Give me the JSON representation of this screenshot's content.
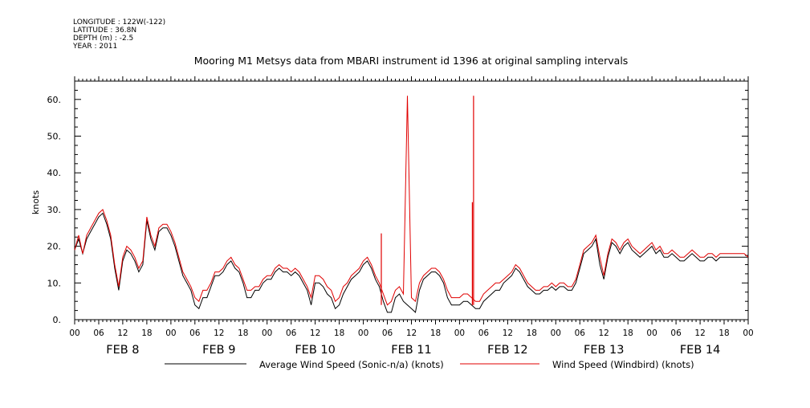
{
  "metadata": [
    "LONGITUDE : 122W(-122)",
    "LATITUDE : 36.8N",
    "DEPTH (m) : -2.5",
    "YEAR : 2011"
  ],
  "colors": {
    "sonic": "#000000",
    "windbird": "#e00000",
    "axes": "#000000"
  },
  "chart_data": {
    "type": "line",
    "title": "Mooring M1 Metsys data from MBARI instrument id 1396 at original sampling intervals",
    "ylabel": "knots",
    "xlabel": "",
    "ylim": [
      0,
      65
    ],
    "xlim_hours": [
      0,
      168
    ],
    "y_ticks": [
      "0.",
      "10.",
      "20.",
      "30.",
      "40.",
      "50.",
      "60."
    ],
    "y_tick_values": [
      0,
      10,
      20,
      30,
      40,
      50,
      60
    ],
    "hour_labels": [
      "00",
      "06",
      "12",
      "18",
      "00",
      "06",
      "12",
      "18",
      "00",
      "06",
      "12",
      "18",
      "00",
      "06",
      "12",
      "18",
      "00",
      "06",
      "12",
      "18",
      "00",
      "06",
      "12",
      "18",
      "00",
      "06",
      "12",
      "18",
      "00"
    ],
    "day_labels": [
      "FEB  8",
      "FEB  9",
      "FEB 10",
      "FEB 11",
      "FEB 12",
      "FEB 13",
      "FEB 14"
    ],
    "grid": false,
    "legend_position": "bottom",
    "x_unit": "hours since FEB 8 00:00",
    "series": [
      {
        "name": "Average Wind Speed (Sonic-n/a) (knots)",
        "x": [
          0,
          1,
          2,
          3,
          4,
          5,
          6,
          7,
          8,
          9,
          10,
          11,
          12,
          13,
          14,
          15,
          16,
          17,
          18,
          19,
          20,
          21,
          22,
          23,
          24,
          25,
          26,
          27,
          28,
          29,
          30,
          31,
          32,
          33,
          34,
          35,
          36,
          37,
          38,
          39,
          40,
          41,
          42,
          43,
          44,
          45,
          46,
          47,
          48,
          49,
          50,
          51,
          52,
          53,
          54,
          55,
          56,
          57,
          58,
          59,
          60,
          61,
          62,
          63,
          64,
          65,
          66,
          67,
          68,
          69,
          70,
          71,
          72,
          73,
          74,
          75,
          76,
          77,
          78,
          79,
          80,
          81,
          82,
          83,
          84,
          85,
          86,
          87,
          88,
          89,
          90,
          91,
          92,
          93,
          94,
          95,
          96,
          97,
          98,
          99,
          100,
          101,
          102,
          103,
          104,
          105,
          106,
          107,
          108,
          109,
          110,
          111,
          112,
          113,
          114,
          115,
          116,
          117,
          118,
          119,
          120,
          121,
          122,
          123,
          124,
          125,
          126,
          127,
          128,
          129,
          130,
          131,
          132,
          133,
          134,
          135,
          136,
          137,
          138,
          139,
          140,
          141,
          142,
          143,
          144,
          145,
          146,
          147,
          148,
          149,
          150,
          151,
          152,
          153,
          154,
          155,
          156,
          157,
          158,
          159,
          160,
          161,
          162,
          163,
          164,
          165,
          166,
          167,
          168
        ],
        "values": [
          19,
          22,
          18,
          22,
          24,
          26,
          28,
          29,
          26,
          22,
          14,
          8,
          16,
          19,
          18,
          16,
          13,
          15,
          27,
          22,
          19,
          24,
          25,
          25,
          23,
          20,
          16,
          12,
          10,
          8,
          4,
          3,
          6,
          6,
          9,
          12,
          12,
          13,
          15,
          16,
          14,
          13,
          10,
          6,
          6,
          8,
          8,
          10,
          11,
          11,
          13,
          14,
          13,
          13,
          12,
          13,
          12,
          10,
          8,
          4,
          10,
          10,
          9,
          7,
          6,
          3,
          4,
          7,
          9,
          11,
          12,
          13,
          15,
          16,
          14,
          11,
          9,
          5,
          2,
          2,
          6,
          7,
          5,
          4,
          3,
          2,
          8,
          11,
          12,
          13,
          13,
          12,
          10,
          6,
          4,
          4,
          4,
          5,
          5,
          4,
          3,
          3,
          5,
          6,
          7,
          8,
          8,
          10,
          11,
          12,
          14,
          13,
          11,
          9,
          8,
          7,
          7,
          8,
          8,
          9,
          8,
          9,
          9,
          8,
          8,
          10,
          14,
          18,
          19,
          20,
          22,
          15,
          11,
          17,
          21,
          20,
          18,
          20,
          21,
          19,
          18,
          17,
          18,
          19,
          20,
          18,
          19,
          17,
          17,
          18,
          17,
          16,
          16,
          17,
          18,
          17,
          16,
          16,
          17,
          17,
          16,
          17,
          17,
          17,
          17,
          17,
          17,
          17,
          17
        ]
      },
      {
        "name": "Wind Speed (Windbird) (knots)",
        "x": [
          0,
          1,
          2,
          3,
          4,
          5,
          6,
          7,
          8,
          9,
          10,
          11,
          12,
          13,
          14,
          15,
          16,
          17,
          18,
          19,
          20,
          21,
          22,
          23,
          24,
          25,
          26,
          27,
          28,
          29,
          30,
          31,
          32,
          33,
          34,
          35,
          36,
          37,
          38,
          39,
          40,
          41,
          42,
          43,
          44,
          45,
          46,
          47,
          48,
          49,
          50,
          51,
          52,
          53,
          54,
          55,
          56,
          57,
          58,
          59,
          60,
          61,
          62,
          63,
          64,
          65,
          66,
          67,
          68,
          69,
          70,
          71,
          72,
          73,
          74,
          75,
          76,
          77,
          78,
          79,
          80,
          81,
          82,
          83,
          84,
          85,
          86,
          87,
          88,
          89,
          90,
          91,
          92,
          93,
          94,
          95,
          96,
          97,
          98,
          99,
          100,
          101,
          102,
          103,
          104,
          105,
          106,
          107,
          108,
          109,
          110,
          111,
          112,
          113,
          114,
          115,
          116,
          117,
          118,
          119,
          120,
          121,
          122,
          123,
          124,
          125,
          126,
          127,
          128,
          129,
          130,
          131,
          132,
          133,
          134,
          135,
          136,
          137,
          138,
          139,
          140,
          141,
          142,
          143,
          144,
          145,
          146,
          147,
          148,
          149,
          150,
          151,
          152,
          153,
          154,
          155,
          156,
          157,
          158,
          159,
          160,
          161,
          162,
          163,
          164,
          165,
          166,
          167,
          168
        ],
        "values": [
          19,
          23,
          18,
          23,
          25,
          27,
          29,
          30,
          27,
          23,
          15,
          9,
          17,
          20,
          19,
          17,
          14,
          16,
          28,
          23,
          20,
          25,
          26,
          26,
          24,
          21,
          17,
          13,
          11,
          9,
          6,
          5,
          8,
          8,
          10,
          13,
          13,
          14,
          16,
          17,
          15,
          14,
          11,
          8,
          8,
          9,
          9,
          11,
          12,
          12,
          14,
          15,
          14,
          14,
          13,
          14,
          13,
          11,
          9,
          6,
          12,
          12,
          11,
          9,
          8,
          5,
          6,
          9,
          10,
          12,
          13,
          14,
          16,
          17,
          15,
          12,
          10,
          7,
          4,
          5,
          8,
          9,
          7,
          61,
          6,
          5,
          10,
          12,
          13,
          14,
          14,
          13,
          11,
          8,
          6,
          6,
          6,
          7,
          7,
          6,
          5,
          5,
          7,
          8,
          9,
          10,
          10,
          11,
          12,
          13,
          15,
          14,
          12,
          10,
          9,
          8,
          8,
          9,
          9,
          10,
          9,
          10,
          10,
          9,
          9,
          11,
          15,
          19,
          20,
          21,
          23,
          17,
          12,
          18,
          22,
          21,
          19,
          21,
          22,
          20,
          19,
          18,
          19,
          20,
          21,
          19,
          20,
          18,
          18,
          19,
          18,
          17,
          17,
          18,
          19,
          18,
          17,
          17,
          18,
          18,
          17,
          18,
          18,
          18,
          18,
          18,
          18,
          18,
          17
        ]
      }
    ],
    "spikes_windbird": [
      {
        "x": 76.5,
        "y": 23.5
      },
      {
        "x": 99.5,
        "y": 61
      },
      {
        "x": 99.2,
        "y": 32
      }
    ]
  }
}
